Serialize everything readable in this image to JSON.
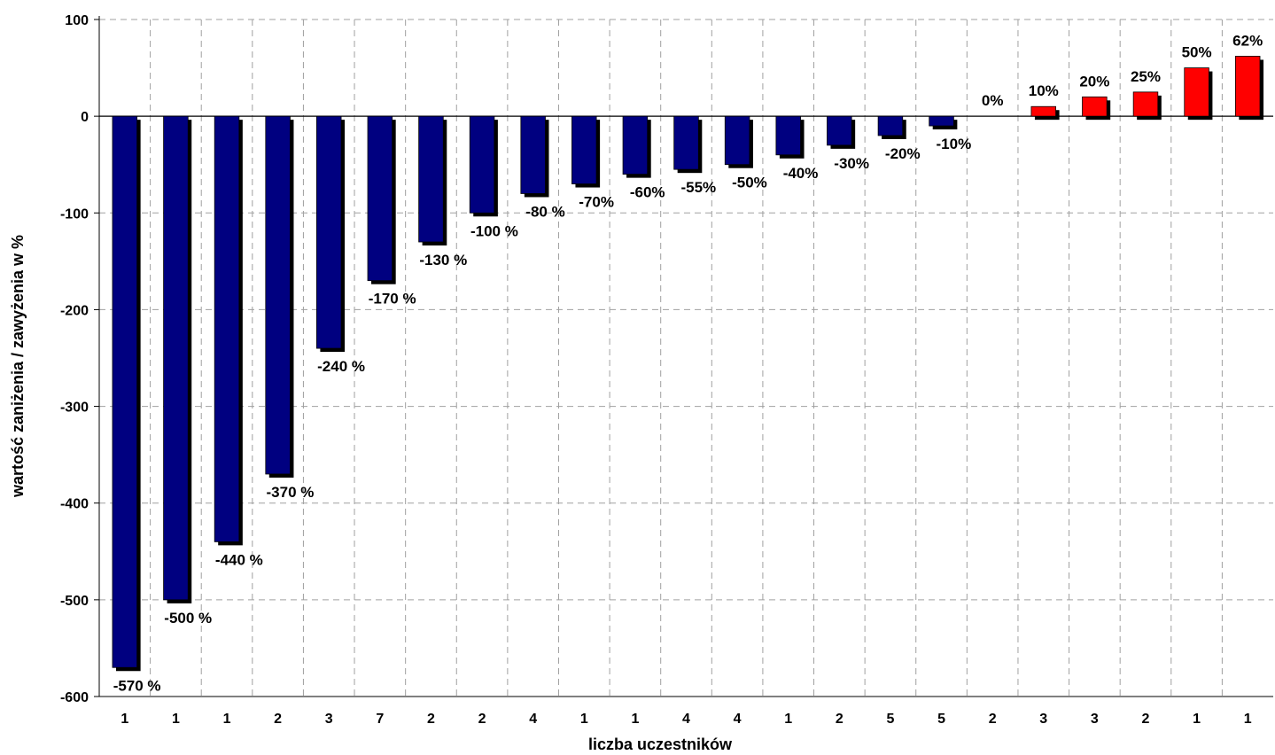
{
  "chart_data": {
    "type": "bar",
    "title": "",
    "xlabel": "liczba uczestników",
    "ylabel": "wartość zaniżenia / zawyżenia w %",
    "ylim": [
      -600,
      100
    ],
    "yticks": [
      100,
      0,
      -100,
      -200,
      -300,
      -400,
      -500,
      -600
    ],
    "grid": true,
    "legend": "none",
    "categories": [
      "1",
      "1",
      "1",
      "2",
      "3",
      "7",
      "2",
      "2",
      "4",
      "1",
      "1",
      "4",
      "4",
      "1",
      "2",
      "5",
      "5",
      "2",
      "3",
      "3",
      "2",
      "1",
      "1"
    ],
    "values": [
      -570,
      -500,
      -440,
      -370,
      -240,
      -170,
      -130,
      -100,
      -80,
      -70,
      -60,
      -55,
      -50,
      -40,
      -30,
      -20,
      -10,
      0,
      10,
      20,
      25,
      50,
      62
    ],
    "data_labels": [
      "-570 %",
      "-500 %",
      "-440 %",
      "-370 %",
      "-240 %",
      "-170 %",
      "-130 %",
      "-100 %",
      "-80 %",
      "-70%",
      "-60%",
      "-55%",
      "-50%",
      "-40%",
      "-30%",
      "-20%",
      "-10%",
      "0%",
      "10%",
      "20%",
      "25%",
      "50%",
      "62%"
    ],
    "colors": {
      "negative": "#000080",
      "positive": "#ff0000",
      "shadow": "#000000",
      "grid": "#a0a0a0"
    }
  }
}
